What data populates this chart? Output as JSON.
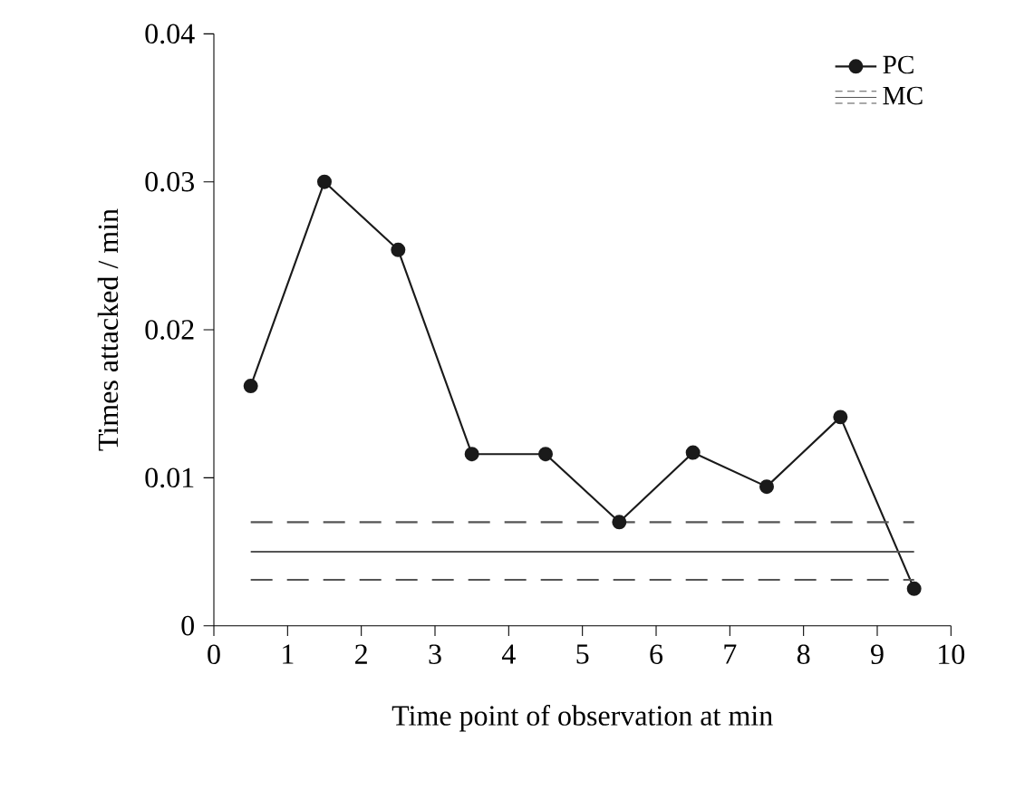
{
  "chart_data": {
    "type": "line",
    "xlabel": "Time point of observation at min",
    "ylabel": "Times attacked / min",
    "xlim": [
      0,
      10
    ],
    "xticks": [
      0,
      1,
      2,
      3,
      4,
      5,
      6,
      7,
      8,
      9,
      10
    ],
    "ylim": [
      0,
      0.04
    ],
    "yticks": [
      0,
      0.01,
      0.02,
      0.03,
      0.04
    ],
    "legend": "top right",
    "series": [
      {
        "name": "PC",
        "color": "#1a1a1a",
        "marker": "circle",
        "line_style": "solid",
        "x": [
          0.5,
          1.5,
          2.5,
          3.5,
          4.5,
          5.5,
          6.5,
          7.5,
          8.5,
          9.5
        ],
        "values": [
          0.0162,
          0.03,
          0.0254,
          0.0116,
          0.0116,
          0.007,
          0.0117,
          0.0094,
          0.0141,
          0.0025
        ]
      },
      {
        "name": "MC",
        "color": "#555555",
        "marker": "none",
        "line_style": "solid",
        "x": [
          0.5,
          9.5
        ],
        "values": [
          0.005,
          0.005
        ]
      },
      {
        "color": "#555555",
        "marker": "none",
        "line_style": "dashed",
        "x": [
          0.5,
          9.5
        ],
        "values": [
          0.007,
          0.007
        ]
      },
      {
        "color": "#555555",
        "marker": "none",
        "line_style": "dashed",
        "x": [
          0.5,
          9.5
        ],
        "values": [
          0.0031,
          0.0031
        ]
      }
    ]
  }
}
